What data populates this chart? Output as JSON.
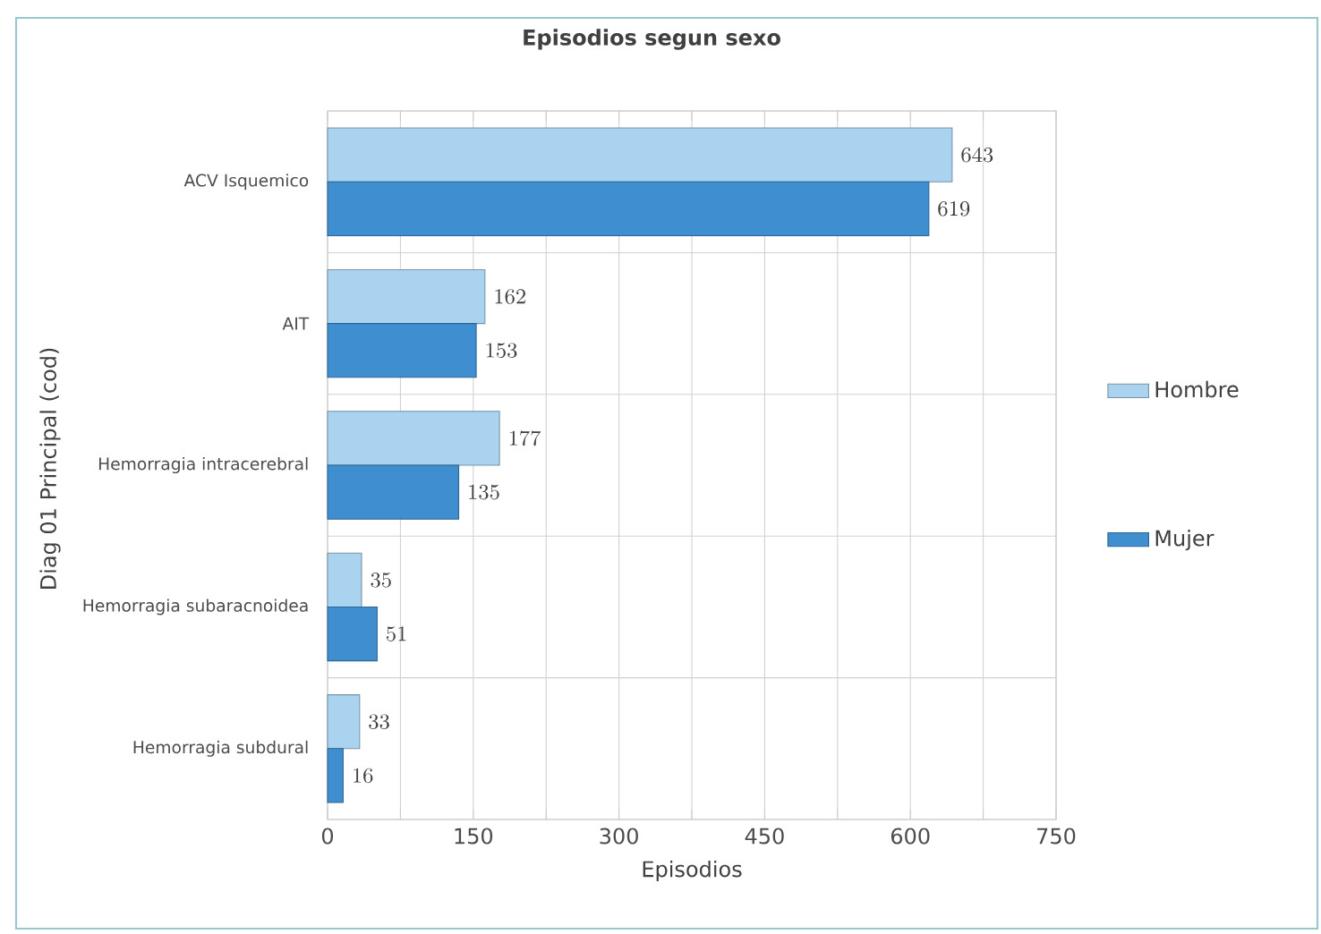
{
  "chart_data": {
    "type": "bar",
    "orientation": "horizontal",
    "title": "Episodios segun sexo",
    "xlabel": "Episodios",
    "ylabel": "Diag 01 Principal    (cod)",
    "categories": [
      "ACV Isquemico",
      "AIT",
      "Hemorragia intracerebral",
      "Hemorragia subaracnoidea",
      "Hemorragia subdural"
    ],
    "series": [
      {
        "name": "Hombre",
        "color": "#a9d3ee",
        "values": [
          643,
          162,
          177,
          35,
          33
        ]
      },
      {
        "name": "Mujer",
        "color": "#3f8fd0",
        "values": [
          619,
          153,
          135,
          51,
          16
        ]
      }
    ],
    "xlim": [
      0,
      750
    ],
    "xticks": [
      0,
      {
        "value": 75,
        "label": null
      },
      150,
      {
        "value": 225,
        "label": null
      },
      300,
      {
        "value": 375,
        "label": null
      },
      450,
      {
        "value": 525,
        "label": null
      },
      600,
      {
        "value": 675,
        "label": null
      },
      750
    ],
    "grid": true,
    "legend": "right",
    "data_labels": true
  }
}
